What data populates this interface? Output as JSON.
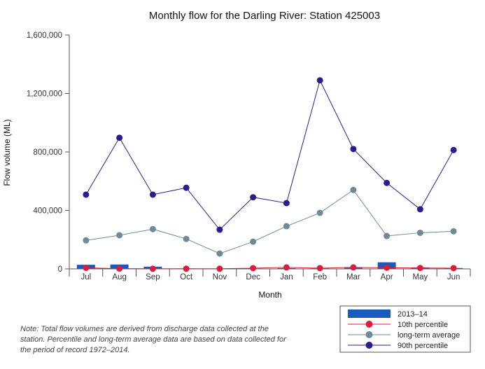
{
  "chart_data": {
    "type": "line",
    "title": "Monthly flow for the Darling River: Station 425003",
    "xlabel": "Month",
    "ylabel": "Flow volume (ML)",
    "ylim": [
      0,
      1600000
    ],
    "yticks": [
      0,
      400000,
      800000,
      1200000,
      1600000
    ],
    "ytick_labels": [
      "0",
      "400,000",
      "800,000",
      "1,200,000",
      "1,600,000"
    ],
    "categories": [
      "Jul",
      "Aug",
      "Sep",
      "Oct",
      "Nov",
      "Dec",
      "Jan",
      "Feb",
      "Mar",
      "Apr",
      "May",
      "Jun"
    ],
    "series": [
      {
        "name": "2013–14",
        "type": "bar",
        "color": "#1a5bbf",
        "values": [
          28000,
          30000,
          15000,
          3000,
          2000,
          3000,
          5000,
          4000,
          12000,
          45000,
          10000,
          6000
        ]
      },
      {
        "name": "10th percentile",
        "type": "line",
        "color": "#d81e3c",
        "values": [
          7000,
          2000,
          1000,
          1000,
          1000,
          5000,
          10000,
          5000,
          10000,
          8000,
          6000,
          5000
        ]
      },
      {
        "name": "long-term average",
        "type": "line",
        "color": "#6e8a96",
        "values": [
          195000,
          230000,
          272000,
          205000,
          105000,
          186000,
          292000,
          383000,
          540000,
          225000,
          247000,
          257000
        ]
      },
      {
        "name": "90th percentile",
        "type": "line",
        "color": "#2e1c8c",
        "values": [
          508000,
          897000,
          508000,
          555000,
          268000,
          490000,
          450000,
          1290000,
          820000,
          588000,
          408000,
          813000
        ]
      }
    ],
    "legend_position": "bottom-right",
    "grid": false
  },
  "note": "Note: Total flow volumes are derived from discharge data collected at the station. Percentile and long-term average data are based on data collected for the period of record 1972–2014."
}
